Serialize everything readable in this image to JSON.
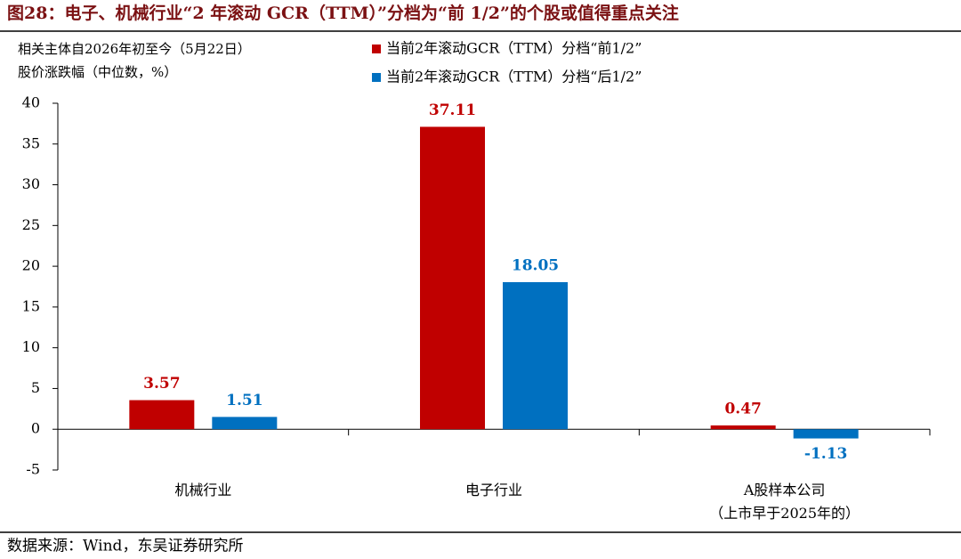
{
  "chart_data": {
    "type": "bar",
    "title": "图28：电子、机械行业“2 年滚动 GCR（TTM）”分档为“前 1/2”的个股或值得重点关注",
    "y_label": "相关主体自2026年初至今（5月22日）\n股价涨跌幅（中位数，%）",
    "source": "数据来源：Wind，东吴证券研究所",
    "categories": [
      "机械行业",
      "电子行业",
      "A股样本公司\n（上市早于2025年的）"
    ],
    "series": [
      {
        "name": "当前2年滚动GCR（TTM）分档“前1/2”",
        "color": "#c00000",
        "values": [
          3.57,
          37.11,
          0.47
        ]
      },
      {
        "name": "当前2年滚动GCR（TTM）分档“后1/2”",
        "color": "#0070c0",
        "values": [
          1.51,
          18.05,
          -1.13
        ]
      }
    ],
    "ylim": [
      -5,
      40
    ],
    "yticks": [
      -5,
      0,
      5,
      10,
      15,
      20,
      25,
      30,
      35,
      40
    ],
    "legend": "top-center"
  }
}
